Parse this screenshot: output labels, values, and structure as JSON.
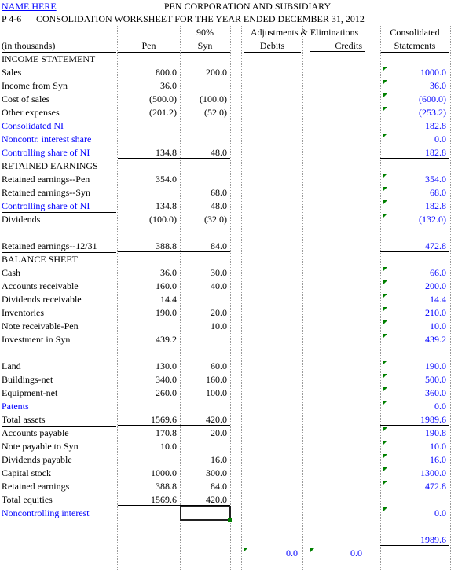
{
  "header": {
    "name": "NAME HERE",
    "problem": "P 4-6",
    "company": "PEN CORPORATION AND SUBSIDIARY",
    "subtitle": "CONSOLIDATION WORKSHEET FOR THE YEAR ENDED DECEMBER 31, 2012"
  },
  "columns": {
    "units": "(in thousands)",
    "pen": "Pen",
    "syn_pct": "90%",
    "syn": "Syn",
    "adj": "Adjustments & Eliminations",
    "debits": "Debits",
    "credits": "Credits",
    "cons1": "Consolidated",
    "cons2": "Statements"
  },
  "rows": [
    {
      "label": "INCOME STATEMENT",
      "pen": "",
      "syn": "",
      "cons": ""
    },
    {
      "label": "Sales",
      "pen": "800.0",
      "syn": "200.0",
      "cons": "1000.0"
    },
    {
      "label": "Income from Syn",
      "pen": "36.0",
      "syn": "",
      "cons": "36.0"
    },
    {
      "label": "Cost of sales",
      "pen": "(500.0)",
      "syn": "(100.0)",
      "cons": "(600.0)"
    },
    {
      "label": "Other expenses",
      "pen": "(201.2)",
      "syn": "(52.0)",
      "cons": "(253.2)"
    },
    {
      "label": "Consolidated NI",
      "pen": "",
      "syn": "",
      "cons": "182.8"
    },
    {
      "label": "Noncontr. interest share",
      "pen": "",
      "syn": "",
      "cons": "0.0"
    },
    {
      "label": "Controlling share of NI",
      "pen": "134.8",
      "syn": "48.0",
      "cons": "182.8"
    },
    {
      "label": "RETAINED EARNINGS",
      "pen": "",
      "syn": "",
      "cons": ""
    },
    {
      "label": "Retained earnings--Pen",
      "pen": "354.0",
      "syn": "",
      "cons": "354.0"
    },
    {
      "label": "Retained earnings--Syn",
      "pen": "",
      "syn": "68.0",
      "cons": "68.0"
    },
    {
      "label": "Controlling share of NI",
      "pen": "134.8",
      "syn": "48.0",
      "cons": "182.8"
    },
    {
      "label": "Dividends",
      "pen": "(100.0)",
      "syn": "(32.0)",
      "cons": "(132.0)"
    },
    {
      "label": "",
      "pen": "",
      "syn": "",
      "cons": ""
    },
    {
      "label": "Retained earnings--12/31",
      "pen": "388.8",
      "syn": "84.0",
      "cons": "472.8"
    },
    {
      "label": "BALANCE SHEET",
      "pen": "",
      "syn": "",
      "cons": ""
    },
    {
      "label": "Cash",
      "pen": "36.0",
      "syn": "30.0",
      "cons": "66.0"
    },
    {
      "label": "Accounts receivable",
      "pen": "160.0",
      "syn": "40.0",
      "cons": "200.0"
    },
    {
      "label": "Dividends receivable",
      "pen": "14.4",
      "syn": "",
      "cons": "14.4"
    },
    {
      "label": "Inventories",
      "pen": "190.0",
      "syn": "20.0",
      "cons": "210.0"
    },
    {
      "label": "Note receivable-Pen",
      "pen": "",
      "syn": "10.0",
      "cons": "10.0"
    },
    {
      "label": "Investment in Syn",
      "pen": "439.2",
      "syn": "",
      "cons": "439.2"
    },
    {
      "label": "",
      "pen": "",
      "syn": "",
      "cons": ""
    },
    {
      "label": "Land",
      "pen": "130.0",
      "syn": "60.0",
      "cons": "190.0"
    },
    {
      "label": "Buildings-net",
      "pen": "340.0",
      "syn": "160.0",
      "cons": "500.0"
    },
    {
      "label": "Equipment-net",
      "pen": "260.0",
      "syn": "100.0",
      "cons": "360.0"
    },
    {
      "label": "Patents",
      "pen": "",
      "syn": "",
      "cons": "0.0"
    },
    {
      "label": "Total assets",
      "pen": "1569.6",
      "syn": "420.0",
      "cons": "1989.6"
    },
    {
      "label": "Accounts payable",
      "pen": "170.8",
      "syn": "20.0",
      "cons": "190.8"
    },
    {
      "label": "Note payable to Syn",
      "pen": "10.0",
      "syn": "",
      "cons": "10.0"
    },
    {
      "label": "Dividends payable",
      "pen": "",
      "syn": "16.0",
      "cons": "16.0"
    },
    {
      "label": "Capital stock",
      "pen": "1000.0",
      "syn": "300.0",
      "cons": "1300.0"
    },
    {
      "label": "Retained earnings",
      "pen": "388.8",
      "syn": "84.0",
      "cons": "472.8"
    },
    {
      "label": "Total equities",
      "pen": "1569.6",
      "syn": "420.0",
      "cons": ""
    },
    {
      "label": "Noncontrolling interest",
      "pen": "",
      "syn": "",
      "cons": "0.0"
    },
    {
      "label": "",
      "pen": "",
      "syn": "",
      "cons": ""
    },
    {
      "label": "",
      "pen": "",
      "syn": "",
      "cons": "1989.6"
    },
    {
      "label": "",
      "pen": "",
      "syn": "",
      "cons": "",
      "deb": "0.0",
      "cred": "0.0"
    }
  ],
  "colors": {
    "link": "#0000ff",
    "marker": "#008000"
  }
}
